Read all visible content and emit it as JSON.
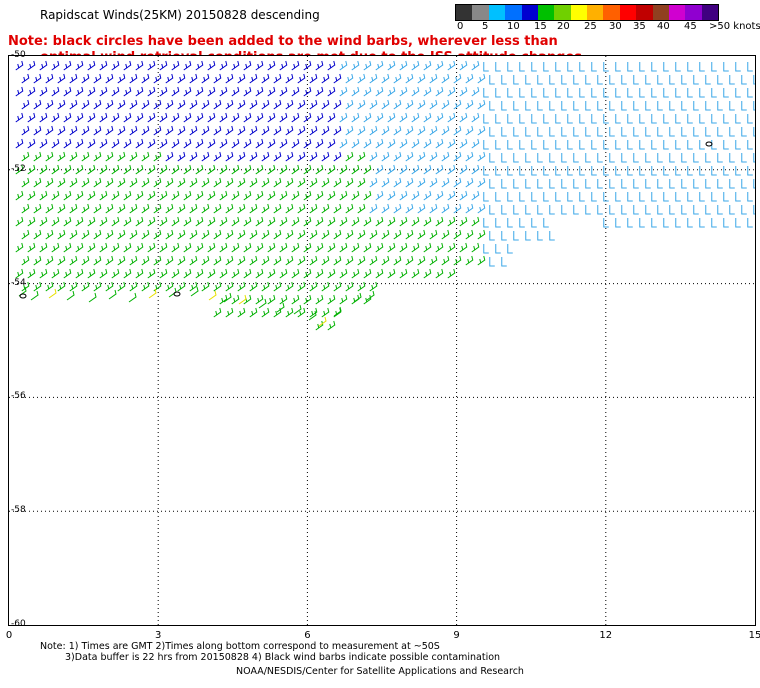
{
  "title": "Rapidscat Winds(25KM) 20150828 descending",
  "note": {
    "line1": "Note: black circles have been added to the wind barbs, wherever less than",
    "line2": "optimal wind retrieval conditions are met due to the ISS attitude changes."
  },
  "legend": {
    "labels": [
      "0",
      "5",
      "10",
      "15",
      "20",
      "25",
      "30",
      "35",
      "40",
      "45",
      ">50 knots"
    ],
    "colors": [
      "#333333",
      "#888888",
      "#00c0ff",
      "#0070ff",
      "#0000d0",
      "#00c000",
      "#70d000",
      "#ffff00",
      "#ffb000",
      "#ff6000",
      "#ff0000",
      "#c00000",
      "#904020",
      "#d000d0",
      "#9000d0",
      "#400080"
    ]
  },
  "map": {
    "lat_labels": [
      "-50",
      "-52",
      "-54",
      "-56",
      "-58",
      "-60"
    ],
    "lon_labels": [
      "0",
      "3",
      "6",
      "9",
      "12",
      "15"
    ],
    "lon_range": [
      0,
      15
    ],
    "lat_range": [
      -50,
      -60
    ],
    "grid": "dotted"
  },
  "barb_colors": {
    "blue": "#0000cc",
    "lightblue": "#3aa7e8",
    "cyan": "#00b8e0",
    "green": "#00b000",
    "lime": "#33cc33",
    "yellow": "#e8e000",
    "black": "#000000"
  },
  "footer": {
    "line1": "Note: 1) Times are GMT 2)Times along bottom correspond to measurement at ~50S",
    "line2": "3)Data buffer is 22 hrs from 20150828 4) Black wind barbs indicate possible contamination",
    "line3": "NOAA/NESDIS/Center for Satellite Applications and Research"
  }
}
